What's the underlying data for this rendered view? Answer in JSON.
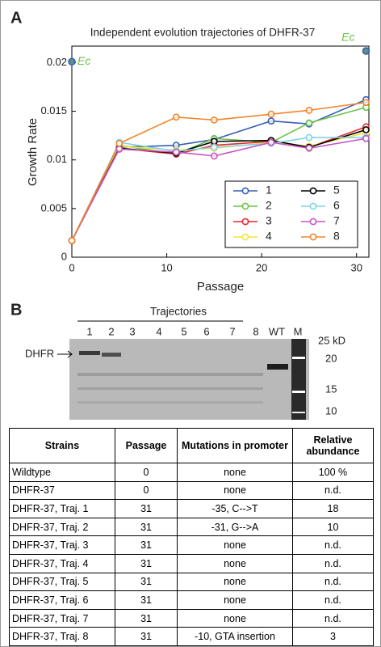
{
  "panel_labels": [
    "A",
    "B"
  ],
  "chart_data": {
    "type": "line",
    "title": "Independent evolution trajectories of DHFR-37",
    "x_label": "Passage",
    "y_label": "Growth Rate",
    "x": [
      0,
      5,
      11,
      15,
      21,
      25,
      31
    ],
    "xlim": [
      0,
      31.3
    ],
    "xticks": [
      0,
      10,
      20,
      30
    ],
    "ylim": [
      0,
      0.0217
    ],
    "yticks": [
      0,
      0.005,
      0.01,
      0.015,
      0.02
    ],
    "legend": "lower right",
    "series": [
      {
        "name": "1",
        "color": "#3a5fb3",
        "values": [
          0.0017,
          0.0113,
          0.0115,
          0.0121,
          0.014,
          0.0137,
          0.0162
        ]
      },
      {
        "name": "2",
        "color": "#6cc04a",
        "values": [
          0.0017,
          0.0115,
          0.0106,
          0.0122,
          0.0118,
          0.0138,
          0.0154
        ]
      },
      {
        "name": "3",
        "color": "#e8262c",
        "values": [
          0.0017,
          0.0112,
          0.0106,
          0.0115,
          0.0119,
          0.0113,
          0.0134
        ]
      },
      {
        "name": "4",
        "color": "#f2e33a",
        "values": [
          0.0017,
          0.0114,
          0.011,
          0.0112,
          0.0118,
          0.0114,
          0.0128
        ]
      },
      {
        "name": "5",
        "color": "#000000",
        "values": [
          0.0017,
          0.0112,
          0.0107,
          0.0119,
          0.012,
          0.0113,
          0.0131
        ]
      },
      {
        "name": "6",
        "color": "#7fd3e6",
        "values": [
          0.0017,
          0.0118,
          0.0109,
          0.0113,
          0.0117,
          0.0123,
          0.0123
        ]
      },
      {
        "name": "7",
        "color": "#c855c5",
        "values": [
          0.0017,
          0.0111,
          0.0108,
          0.0104,
          0.0118,
          0.0112,
          0.0122
        ]
      },
      {
        "name": "8",
        "color": "#f0852d",
        "values": [
          0.0017,
          0.0117,
          0.0144,
          0.0141,
          0.0147,
          0.0151,
          0.0159
        ]
      }
    ],
    "annotations": [
      {
        "text": "Ec",
        "x": 0,
        "y": 0.0201
      },
      {
        "text": "Ec",
        "x": 31,
        "y": 0.0212
      }
    ]
  },
  "gel": {
    "group_label": "Trajectories",
    "lanes": [
      "1",
      "2",
      "3",
      "4",
      "5",
      "6",
      "7",
      "8",
      "WT",
      "M"
    ],
    "band_label": "DHFR",
    "size_labels": [
      "25 kD",
      "20",
      "15",
      "10"
    ]
  },
  "table": {
    "header": [
      "Strains",
      "Passage",
      "Mutations in promoter",
      "Relative abundance"
    ],
    "rows": [
      [
        "Wildtype",
        "0",
        "none",
        "100 %"
      ],
      [
        "DHFR-37",
        "0",
        "none",
        "n.d."
      ],
      [
        "DHFR-37, Traj. 1",
        "31",
        "-35, C-->T",
        "18"
      ],
      [
        "DHFR-37, Traj. 2",
        "31",
        "-31, G-->A",
        "10"
      ],
      [
        "DHFR-37, Traj. 3",
        "31",
        "none",
        "n.d."
      ],
      [
        "DHFR-37, Traj. 4",
        "31",
        "none",
        "n.d."
      ],
      [
        "DHFR-37, Traj. 5",
        "31",
        "none",
        "n.d."
      ],
      [
        "DHFR-37, Traj. 6",
        "31",
        "none",
        "n.d."
      ],
      [
        "DHFR-37, Traj. 7",
        "31",
        "none",
        "n.d."
      ],
      [
        "DHFR-37, Traj. 8",
        "31",
        "-10, GTA insertion",
        "3"
      ]
    ]
  }
}
